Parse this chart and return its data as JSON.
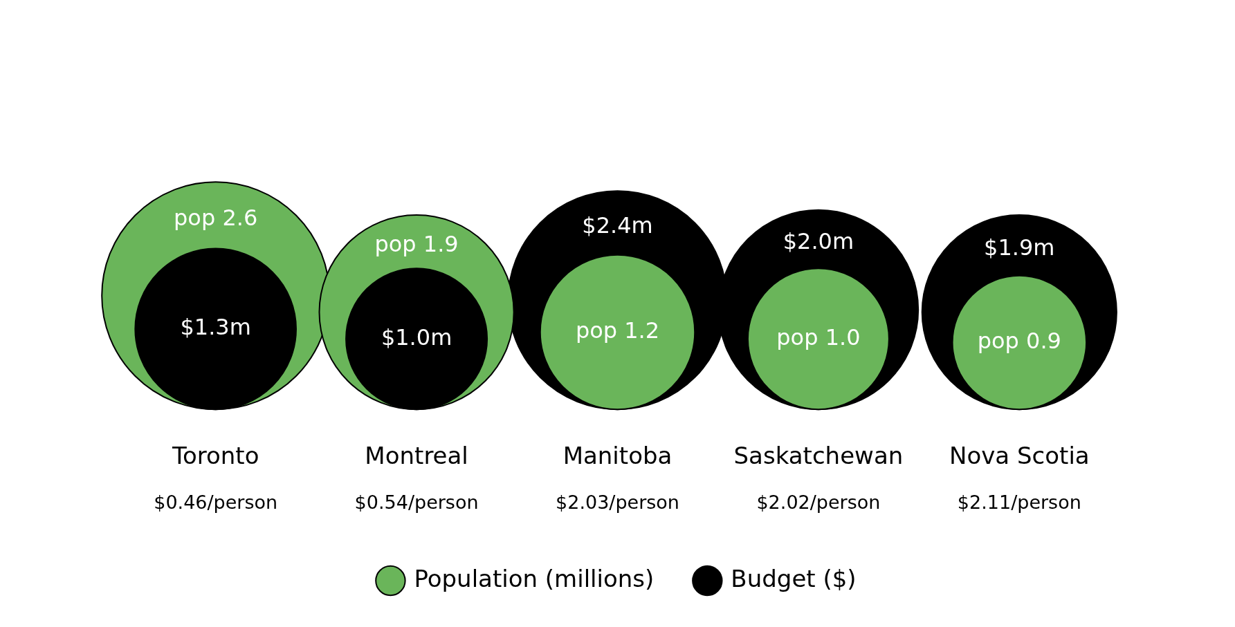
{
  "chart_data": {
    "type": "other",
    "categories": [
      "Toronto",
      "Montreal",
      "Manitoba",
      "Saskatchewan",
      "Nova Scotia"
    ],
    "series": [
      {
        "name": "Population (millions)",
        "color": "#6ab55a",
        "values": [
          2.6,
          1.9,
          1.2,
          1.0,
          0.9
        ],
        "value_labels": [
          "pop 2.6",
          "pop 1.9",
          "pop 1.2",
          "pop 1.0",
          "pop 0.9"
        ]
      },
      {
        "name": "Budget ($)",
        "color": "#000000",
        "values": [
          1.3,
          1.0,
          2.4,
          2.0,
          1.9
        ],
        "value_labels": [
          "$1.3m",
          "$1.0m",
          "$2.4m",
          "$2.0m",
          "$1.9m"
        ]
      }
    ],
    "annotations": [
      {
        "text": "$0.46/person",
        "x": "Toronto"
      },
      {
        "text": "$0.54/person",
        "x": "Montreal"
      },
      {
        "text": "$2.03/person",
        "x": "Manitoba"
      },
      {
        "text": "$2.02/person",
        "x": "Saskatchewan"
      },
      {
        "text": "$2.11/person",
        "x": "Nova Scotia"
      }
    ],
    "legend": "bottom"
  }
}
